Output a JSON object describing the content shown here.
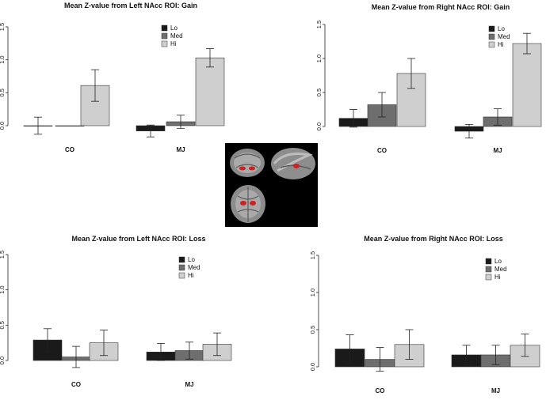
{
  "colors": {
    "Lo": "#1a1a1a",
    "Med": "#6e6e6e",
    "Hi": "#cfcfcf"
  },
  "brain_inset": "brain MRI slices showing left and right NAcc ROIs in red",
  "chart_data": [
    {
      "type": "bar",
      "title": "Mean Z-value from Left NAcc ROI: Gain",
      "categories": [
        "CO",
        "MJ"
      ],
      "yticks": [
        "0.0",
        "0.5",
        "1.0",
        "1.5"
      ],
      "ylim": [
        -0.2,
        1.55
      ],
      "legend_placement": "top-right",
      "series": [
        {
          "name": "Lo",
          "values": [
            0.0,
            -0.08
          ],
          "errors": [
            0.13,
            0.09
          ]
        },
        {
          "name": "Med",
          "values": [
            0.0,
            0.06
          ],
          "errors": [
            0.0,
            0.1
          ]
        },
        {
          "name": "Hi",
          "values": [
            0.61,
            1.03
          ],
          "errors": [
            0.24,
            0.14
          ]
        }
      ]
    },
    {
      "type": "bar",
      "title": "Mean Z-value from Right NAcc ROI: Gain",
      "categories": [
        "CO",
        "MJ"
      ],
      "yticks": [
        "0.0",
        "0.5",
        "1.0",
        "1.5"
      ],
      "ylim": [
        -0.2,
        1.55
      ],
      "legend_placement": "top-right",
      "series": [
        {
          "name": "Lo",
          "values": [
            0.12,
            -0.07
          ],
          "errors": [
            0.13,
            0.1
          ]
        },
        {
          "name": "Med",
          "values": [
            0.32,
            0.14
          ],
          "errors": [
            0.18,
            0.12
          ]
        },
        {
          "name": "Hi",
          "values": [
            0.78,
            1.22
          ],
          "errors": [
            0.22,
            0.15
          ]
        }
      ]
    },
    {
      "type": "bar",
      "title": "Mean Z-value from Left NAcc ROI: Loss",
      "categories": [
        "CO",
        "MJ"
      ],
      "yticks": [
        "0.0",
        "0.5",
        "1.0",
        "1.5"
      ],
      "ylim": [
        -0.1,
        1.55
      ],
      "legend_placement": "top-right",
      "series": [
        {
          "name": "Lo",
          "values": [
            0.29,
            0.12
          ],
          "errors": [
            0.16,
            0.12
          ]
        },
        {
          "name": "Med",
          "values": [
            0.05,
            0.14
          ],
          "errors": [
            0.15,
            0.12
          ]
        },
        {
          "name": "Hi",
          "values": [
            0.25,
            0.23
          ],
          "errors": [
            0.18,
            0.16
          ]
        }
      ]
    },
    {
      "type": "bar",
      "title": "Mean Z-value from Right NAcc ROI: Loss",
      "categories": [
        "CO",
        "MJ"
      ],
      "yticks": [
        "0.0",
        "0.5",
        "1.0",
        "1.5"
      ],
      "ylim": [
        -0.1,
        1.55
      ],
      "legend_placement": "top-right",
      "series": [
        {
          "name": "Lo",
          "values": [
            0.24,
            0.16
          ],
          "errors": [
            0.19,
            0.13
          ]
        },
        {
          "name": "Med",
          "values": [
            0.1,
            0.16
          ],
          "errors": [
            0.16,
            0.13
          ]
        },
        {
          "name": "Hi",
          "values": [
            0.3,
            0.29
          ],
          "errors": [
            0.2,
            0.15
          ]
        }
      ]
    }
  ]
}
